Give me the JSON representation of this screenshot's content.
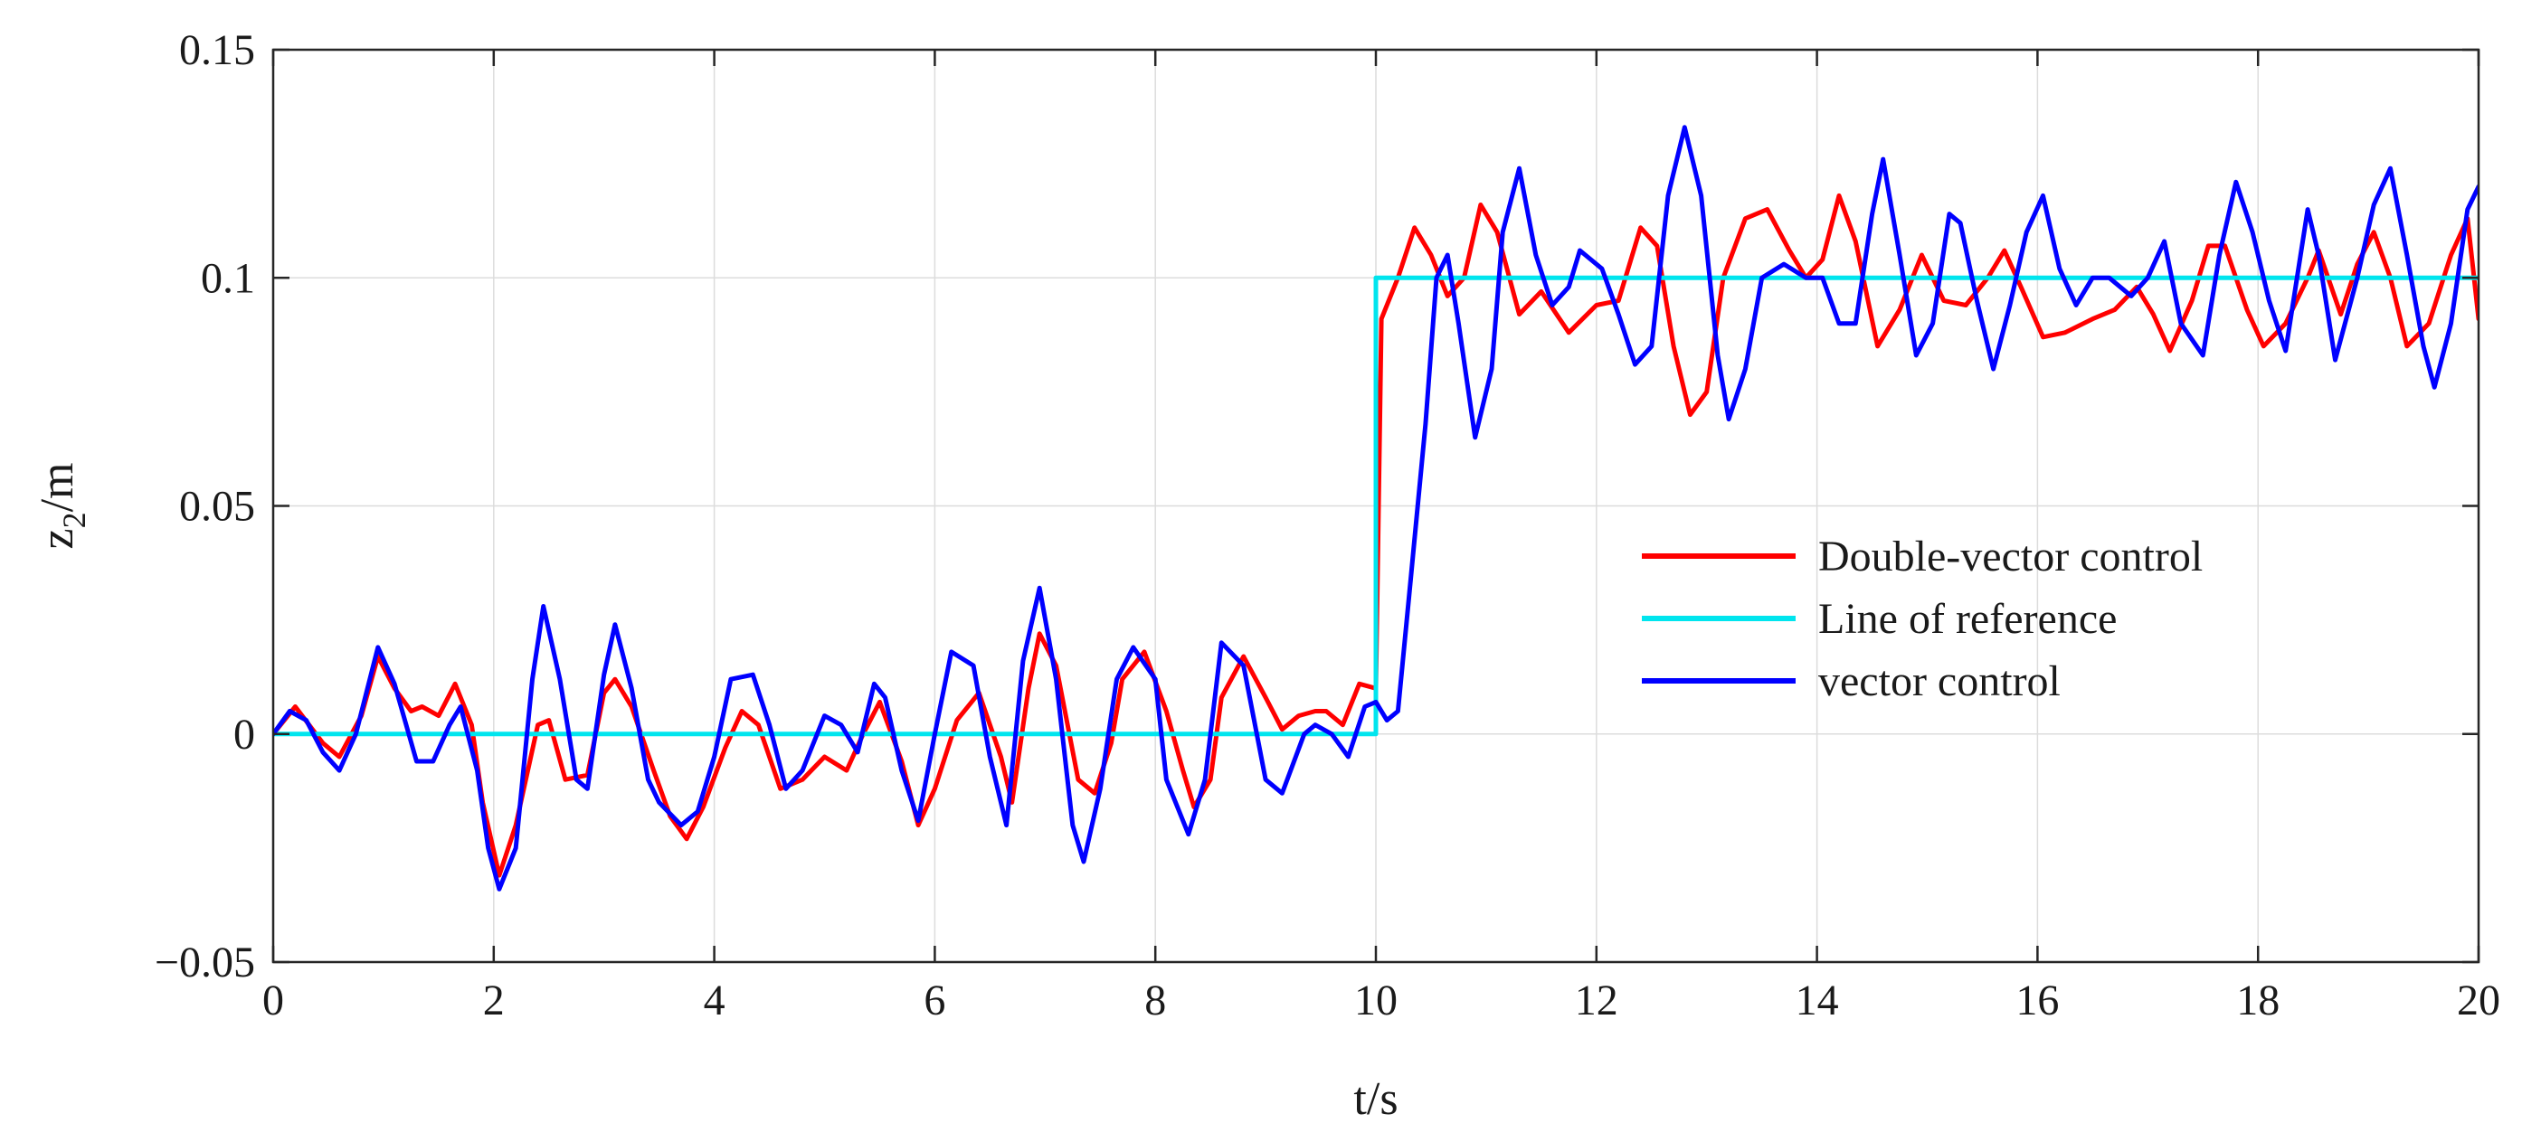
{
  "chart_data": {
    "type": "line",
    "xlabel": "t/s",
    "ylabel": {
      "base": "z",
      "sub": "2",
      "rest": "/m"
    },
    "xlim": [
      0,
      20
    ],
    "ylim": [
      -0.05,
      0.15
    ],
    "xticks": [
      0,
      2,
      4,
      6,
      8,
      10,
      12,
      14,
      16,
      18,
      20
    ],
    "xtick_labels": [
      "0",
      "2",
      "4",
      "6",
      "8",
      "10",
      "12",
      "14",
      "16",
      "18",
      "20"
    ],
    "yticks": [
      -0.05,
      0,
      0.05,
      0.1,
      0.15
    ],
    "ytick_labels": [
      "−0.05",
      "0",
      "0.05",
      "0.1",
      "0.15"
    ],
    "grid": true,
    "legend_position": "center-right",
    "series": [
      {
        "name": "Double-vector control",
        "color": "#ff0000",
        "points": [
          [
            0,
            0
          ],
          [
            0.2,
            0.006
          ],
          [
            0.45,
            -0.002
          ],
          [
            0.6,
            -0.005
          ],
          [
            0.8,
            0.004
          ],
          [
            0.95,
            0.017
          ],
          [
            1.1,
            0.01
          ],
          [
            1.25,
            0.005
          ],
          [
            1.35,
            0.006
          ],
          [
            1.5,
            0.004
          ],
          [
            1.65,
            0.011
          ],
          [
            1.8,
            0.002
          ],
          [
            1.9,
            -0.015
          ],
          [
            2.05,
            -0.031
          ],
          [
            2.2,
            -0.02
          ],
          [
            2.4,
            0.002
          ],
          [
            2.5,
            0.003
          ],
          [
            2.65,
            -0.01
          ],
          [
            2.85,
            -0.009
          ],
          [
            3.0,
            0.009
          ],
          [
            3.1,
            0.012
          ],
          [
            3.25,
            0.006
          ],
          [
            3.45,
            -0.008
          ],
          [
            3.6,
            -0.018
          ],
          [
            3.75,
            -0.023
          ],
          [
            3.9,
            -0.016
          ],
          [
            4.1,
            -0.003
          ],
          [
            4.25,
            0.005
          ],
          [
            4.4,
            0.002
          ],
          [
            4.6,
            -0.012
          ],
          [
            4.8,
            -0.01
          ],
          [
            5.0,
            -0.005
          ],
          [
            5.2,
            -0.008
          ],
          [
            5.35,
            0.0
          ],
          [
            5.5,
            0.007
          ],
          [
            5.7,
            -0.006
          ],
          [
            5.85,
            -0.02
          ],
          [
            6.0,
            -0.012
          ],
          [
            6.2,
            0.003
          ],
          [
            6.4,
            0.009
          ],
          [
            6.6,
            -0.005
          ],
          [
            6.7,
            -0.015
          ],
          [
            6.85,
            0.01
          ],
          [
            6.95,
            0.022
          ],
          [
            7.1,
            0.015
          ],
          [
            7.3,
            -0.01
          ],
          [
            7.45,
            -0.013
          ],
          [
            7.6,
            -0.002
          ],
          [
            7.7,
            0.012
          ],
          [
            7.9,
            0.018
          ],
          [
            8.1,
            0.005
          ],
          [
            8.25,
            -0.008
          ],
          [
            8.35,
            -0.016
          ],
          [
            8.5,
            -0.01
          ],
          [
            8.6,
            0.008
          ],
          [
            8.8,
            0.017
          ],
          [
            9.0,
            0.008
          ],
          [
            9.15,
            0.001
          ],
          [
            9.3,
            0.004
          ],
          [
            9.45,
            0.005
          ],
          [
            9.55,
            0.005
          ],
          [
            9.7,
            0.002
          ],
          [
            9.85,
            0.011
          ],
          [
            10.0,
            0.01
          ],
          [
            10.05,
            0.091
          ],
          [
            10.2,
            0.1
          ],
          [
            10.35,
            0.111
          ],
          [
            10.5,
            0.105
          ],
          [
            10.65,
            0.096
          ],
          [
            10.8,
            0.1
          ],
          [
            10.95,
            0.116
          ],
          [
            11.1,
            0.11
          ],
          [
            11.3,
            0.092
          ],
          [
            11.5,
            0.097
          ],
          [
            11.75,
            0.088
          ],
          [
            12.0,
            0.094
          ],
          [
            12.2,
            0.095
          ],
          [
            12.4,
            0.111
          ],
          [
            12.55,
            0.107
          ],
          [
            12.7,
            0.085
          ],
          [
            12.85,
            0.07
          ],
          [
            13.0,
            0.075
          ],
          [
            13.15,
            0.1
          ],
          [
            13.35,
            0.113
          ],
          [
            13.55,
            0.115
          ],
          [
            13.75,
            0.106
          ],
          [
            13.9,
            0.1
          ],
          [
            14.05,
            0.104
          ],
          [
            14.2,
            0.118
          ],
          [
            14.35,
            0.108
          ],
          [
            14.55,
            0.085
          ],
          [
            14.75,
            0.093
          ],
          [
            14.95,
            0.105
          ],
          [
            15.15,
            0.095
          ],
          [
            15.35,
            0.094
          ],
          [
            15.55,
            0.1
          ],
          [
            15.7,
            0.106
          ],
          [
            15.85,
            0.098
          ],
          [
            16.05,
            0.087
          ],
          [
            16.25,
            0.088
          ],
          [
            16.5,
            0.091
          ],
          [
            16.7,
            0.093
          ],
          [
            16.9,
            0.098
          ],
          [
            17.05,
            0.092
          ],
          [
            17.2,
            0.084
          ],
          [
            17.4,
            0.095
          ],
          [
            17.55,
            0.107
          ],
          [
            17.7,
            0.107
          ],
          [
            17.9,
            0.093
          ],
          [
            18.05,
            0.085
          ],
          [
            18.25,
            0.09
          ],
          [
            18.45,
            0.1
          ],
          [
            18.55,
            0.106
          ],
          [
            18.75,
            0.092
          ],
          [
            18.9,
            0.103
          ],
          [
            19.05,
            0.11
          ],
          [
            19.2,
            0.1
          ],
          [
            19.35,
            0.085
          ],
          [
            19.55,
            0.09
          ],
          [
            19.75,
            0.105
          ],
          [
            19.9,
            0.113
          ],
          [
            20,
            0.091
          ]
        ]
      },
      {
        "name": "Line of reference",
        "color": "#00e5ee",
        "points": [
          [
            0,
            0
          ],
          [
            10,
            0
          ],
          [
            10,
            0.1
          ],
          [
            20,
            0.1
          ]
        ]
      },
      {
        "name": "vector control",
        "color": "#0000ff",
        "points": [
          [
            0,
            0
          ],
          [
            0.15,
            0.005
          ],
          [
            0.3,
            0.003
          ],
          [
            0.45,
            -0.004
          ],
          [
            0.6,
            -0.008
          ],
          [
            0.75,
            0.0
          ],
          [
            0.95,
            0.019
          ],
          [
            1.1,
            0.011
          ],
          [
            1.3,
            -0.006
          ],
          [
            1.45,
            -0.006
          ],
          [
            1.6,
            0.002
          ],
          [
            1.7,
            0.006
          ],
          [
            1.85,
            -0.008
          ],
          [
            1.95,
            -0.025
          ],
          [
            2.05,
            -0.034
          ],
          [
            2.2,
            -0.025
          ],
          [
            2.35,
            0.012
          ],
          [
            2.45,
            0.028
          ],
          [
            2.6,
            0.012
          ],
          [
            2.75,
            -0.01
          ],
          [
            2.85,
            -0.012
          ],
          [
            3.0,
            0.013
          ],
          [
            3.1,
            0.024
          ],
          [
            3.25,
            0.01
          ],
          [
            3.4,
            -0.01
          ],
          [
            3.5,
            -0.015
          ],
          [
            3.7,
            -0.02
          ],
          [
            3.85,
            -0.017
          ],
          [
            4.0,
            -0.005
          ],
          [
            4.15,
            0.012
          ],
          [
            4.35,
            0.013
          ],
          [
            4.5,
            0.002
          ],
          [
            4.65,
            -0.012
          ],
          [
            4.8,
            -0.008
          ],
          [
            5.0,
            0.004
          ],
          [
            5.15,
            0.002
          ],
          [
            5.3,
            -0.004
          ],
          [
            5.45,
            0.011
          ],
          [
            5.55,
            0.008
          ],
          [
            5.7,
            -0.008
          ],
          [
            5.85,
            -0.019
          ],
          [
            6.0,
            0.0
          ],
          [
            6.15,
            0.018
          ],
          [
            6.35,
            0.015
          ],
          [
            6.5,
            -0.005
          ],
          [
            6.65,
            -0.02
          ],
          [
            6.8,
            0.016
          ],
          [
            6.95,
            0.032
          ],
          [
            7.1,
            0.012
          ],
          [
            7.25,
            -0.02
          ],
          [
            7.35,
            -0.028
          ],
          [
            7.5,
            -0.012
          ],
          [
            7.65,
            0.012
          ],
          [
            7.8,
            0.019
          ],
          [
            8.0,
            0.012
          ],
          [
            8.1,
            -0.01
          ],
          [
            8.3,
            -0.022
          ],
          [
            8.45,
            -0.01
          ],
          [
            8.6,
            0.02
          ],
          [
            8.8,
            0.015
          ],
          [
            9.0,
            -0.01
          ],
          [
            9.15,
            -0.013
          ],
          [
            9.35,
            0.0
          ],
          [
            9.45,
            0.002
          ],
          [
            9.6,
            0.0
          ],
          [
            9.75,
            -0.005
          ],
          [
            9.9,
            0.006
          ],
          [
            10.0,
            0.007
          ],
          [
            10.1,
            0.003
          ],
          [
            10.2,
            0.005
          ],
          [
            10.3,
            0.03
          ],
          [
            10.45,
            0.068
          ],
          [
            10.55,
            0.1
          ],
          [
            10.65,
            0.105
          ],
          [
            10.75,
            0.09
          ],
          [
            10.9,
            0.065
          ],
          [
            11.05,
            0.08
          ],
          [
            11.15,
            0.11
          ],
          [
            11.3,
            0.124
          ],
          [
            11.45,
            0.105
          ],
          [
            11.6,
            0.094
          ],
          [
            11.75,
            0.098
          ],
          [
            11.85,
            0.106
          ],
          [
            12.05,
            0.102
          ],
          [
            12.2,
            0.092
          ],
          [
            12.35,
            0.081
          ],
          [
            12.5,
            0.085
          ],
          [
            12.65,
            0.118
          ],
          [
            12.8,
            0.133
          ],
          [
            12.95,
            0.118
          ],
          [
            13.1,
            0.083
          ],
          [
            13.2,
            0.069
          ],
          [
            13.35,
            0.08
          ],
          [
            13.5,
            0.1
          ],
          [
            13.7,
            0.103
          ],
          [
            13.9,
            0.1
          ],
          [
            14.05,
            0.1
          ],
          [
            14.2,
            0.09
          ],
          [
            14.35,
            0.09
          ],
          [
            14.5,
            0.114
          ],
          [
            14.6,
            0.126
          ],
          [
            14.75,
            0.105
          ],
          [
            14.9,
            0.083
          ],
          [
            15.05,
            0.09
          ],
          [
            15.2,
            0.114
          ],
          [
            15.3,
            0.112
          ],
          [
            15.45,
            0.095
          ],
          [
            15.6,
            0.08
          ],
          [
            15.75,
            0.094
          ],
          [
            15.9,
            0.11
          ],
          [
            16.05,
            0.118
          ],
          [
            16.2,
            0.102
          ],
          [
            16.35,
            0.094
          ],
          [
            16.5,
            0.1
          ],
          [
            16.65,
            0.1
          ],
          [
            16.85,
            0.096
          ],
          [
            17.0,
            0.1
          ],
          [
            17.15,
            0.108
          ],
          [
            17.3,
            0.09
          ],
          [
            17.5,
            0.083
          ],
          [
            17.65,
            0.105
          ],
          [
            17.8,
            0.121
          ],
          [
            17.95,
            0.11
          ],
          [
            18.1,
            0.095
          ],
          [
            18.25,
            0.084
          ],
          [
            18.45,
            0.115
          ],
          [
            18.55,
            0.105
          ],
          [
            18.7,
            0.082
          ],
          [
            18.9,
            0.1
          ],
          [
            19.05,
            0.116
          ],
          [
            19.2,
            0.124
          ],
          [
            19.35,
            0.105
          ],
          [
            19.5,
            0.085
          ],
          [
            19.6,
            0.076
          ],
          [
            19.75,
            0.09
          ],
          [
            19.9,
            0.115
          ],
          [
            20,
            0.12
          ]
        ]
      }
    ]
  }
}
